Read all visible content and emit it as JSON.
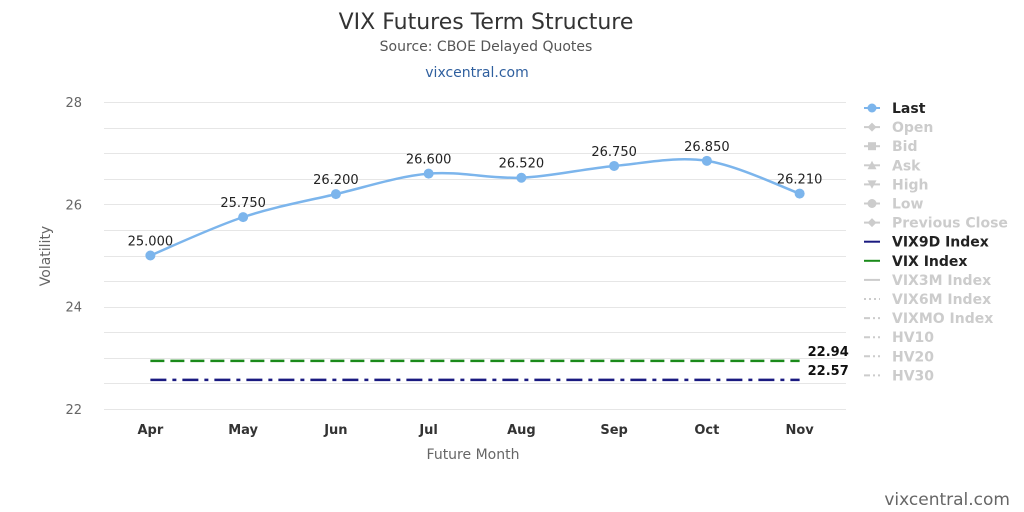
{
  "header": {
    "title": "VIX Futures Term Structure",
    "subtitle": "Source: CBOE Delayed Quotes",
    "link": "vixcentral.com"
  },
  "credit": "vixcentral.com",
  "chart_data": {
    "type": "line",
    "title": "VIX Futures Term Structure",
    "subtitle": "Source: CBOE Delayed Quotes",
    "xlabel": "Future Month",
    "ylabel": "Volatility",
    "ylim": [
      22,
      28
    ],
    "yticks": [
      22,
      24,
      26,
      28
    ],
    "grid": true,
    "legend_position": "right",
    "categories": [
      "Apr",
      "May",
      "Jun",
      "Jul",
      "Aug",
      "Sep",
      "Oct",
      "Nov"
    ],
    "series": [
      {
        "name": "Last",
        "values": [
          25.0,
          25.75,
          26.2,
          26.6,
          26.52,
          26.75,
          26.85,
          26.21
        ],
        "labels": [
          "25.000",
          "25.750",
          "26.200",
          "26.600",
          "26.520",
          "26.750",
          "26.850",
          "26.210"
        ],
        "color": "#7cb5ec",
        "visible": true
      }
    ],
    "reference_lines": [
      {
        "name": "VIX Index",
        "value": 22.94,
        "label": "22.94",
        "color": "#1a8a1a",
        "style": "dash"
      },
      {
        "name": "VIX9D Index",
        "value": 22.57,
        "label": "22.57",
        "color": "#1a1a80",
        "style": "dashdot"
      }
    ],
    "legend": [
      {
        "name": "Last",
        "active": true,
        "symbol": "circle-line",
        "color": "#7cb5ec"
      },
      {
        "name": "Open",
        "active": false,
        "symbol": "diamond-line"
      },
      {
        "name": "Bid",
        "active": false,
        "symbol": "square-line"
      },
      {
        "name": "Ask",
        "active": false,
        "symbol": "triangle-line"
      },
      {
        "name": "High",
        "active": false,
        "symbol": "triangle-down-line"
      },
      {
        "name": "Low",
        "active": false,
        "symbol": "circle-line"
      },
      {
        "name": "Previous Close",
        "active": false,
        "symbol": "diamond-line"
      },
      {
        "name": "VIX9D Index",
        "active": true,
        "symbol": "solid",
        "color": "#1a1a80"
      },
      {
        "name": "VIX Index",
        "active": true,
        "symbol": "solid",
        "color": "#1a8a1a"
      },
      {
        "name": "VIX3M Index",
        "active": false,
        "symbol": "solid"
      },
      {
        "name": "VIX6M Index",
        "active": false,
        "symbol": "dotted"
      },
      {
        "name": "VIXMO Index",
        "active": false,
        "symbol": "dash-dot"
      },
      {
        "name": "HV10",
        "active": false,
        "symbol": "dash-dot"
      },
      {
        "name": "HV20",
        "active": false,
        "symbol": "dash-dot"
      },
      {
        "name": "HV30",
        "active": false,
        "symbol": "dash-dot"
      }
    ]
  }
}
